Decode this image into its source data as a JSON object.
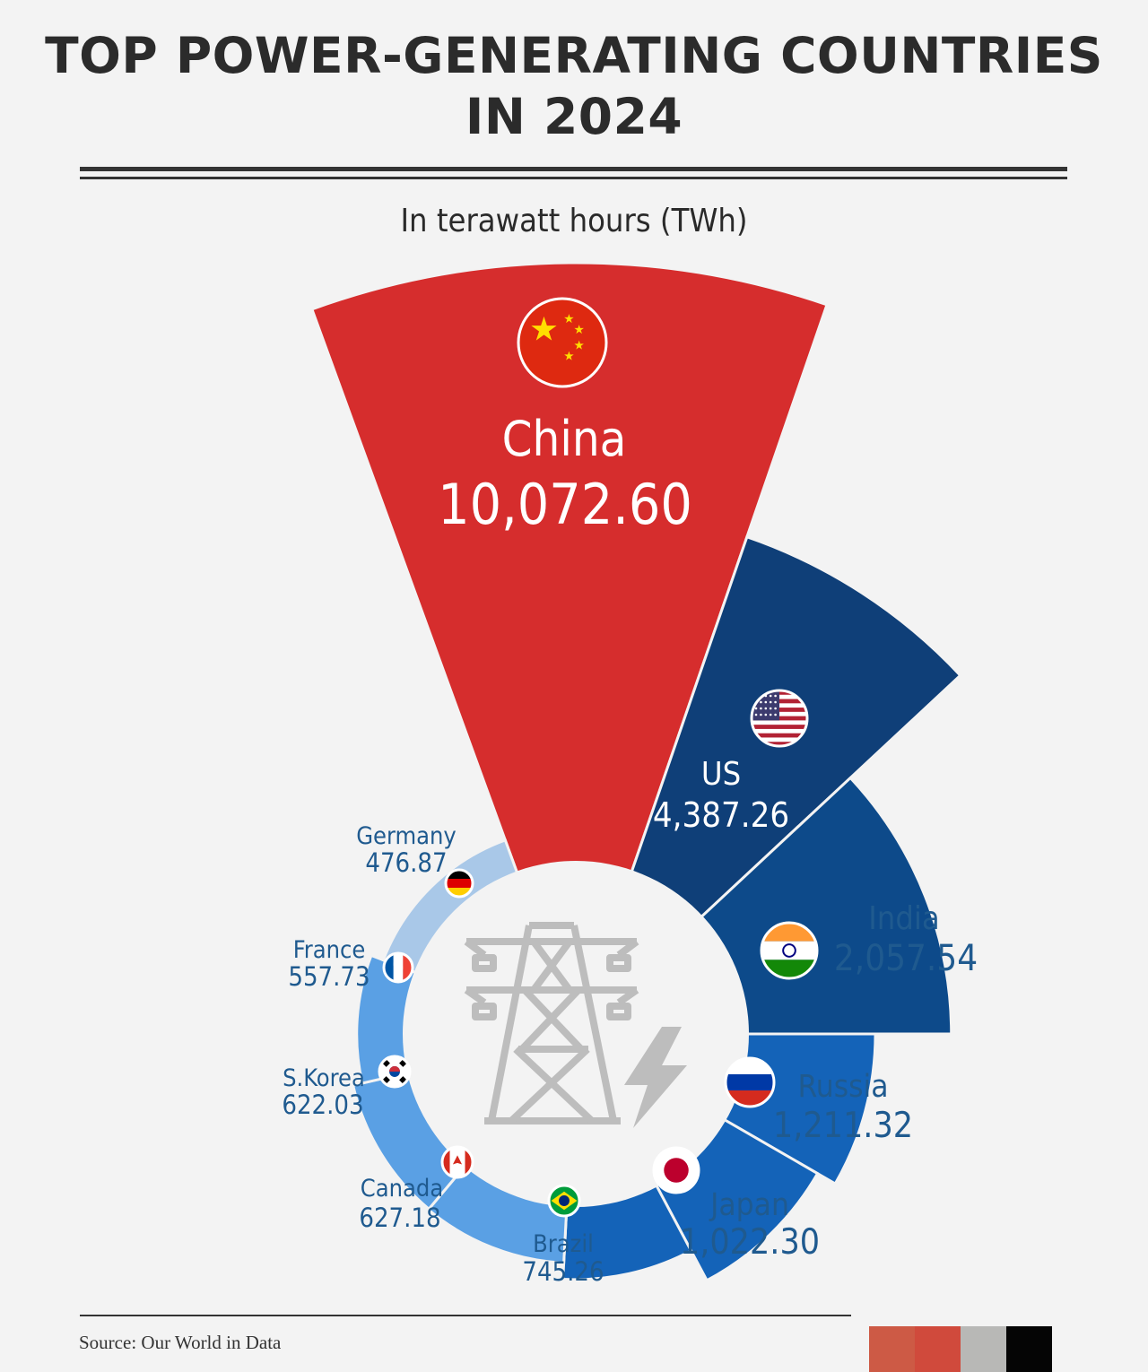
{
  "header": {
    "title_line1": "TOP POWER-GENERATING COUNTRIES",
    "title_line2": "IN 2024",
    "subtitle": "In terawatt hours (TWh)"
  },
  "footer": {
    "source": "Source: Our World in Data",
    "palette": [
      "#cd5a45",
      "#d04a3c",
      "#b8b8b6",
      "#050505"
    ]
  },
  "colors": {
    "china": "#d62d2d",
    "dark_blue": "#0f3f78",
    "mid_blue": "#0d4a8a",
    "blue": "#1463b8",
    "light_blue": "#5aa0e4",
    "pale_blue": "#a9c8e8",
    "label_blue": "#1f5a8f"
  },
  "chart_data": {
    "type": "radial-bar",
    "unit": "TWh",
    "title": "TOP POWER-GENERATING COUNTRIES IN 2024",
    "subtitle": "In terawatt hours (TWh)",
    "categories": [
      "China",
      "US",
      "India",
      "Russia",
      "Japan",
      "Brazil",
      "Canada",
      "S.Korea",
      "France",
      "Germany"
    ],
    "values": [
      10072.6,
      4387.26,
      2057.54,
      1211.32,
      1022.3,
      745.26,
      627.18,
      622.03,
      557.73,
      476.87
    ],
    "labels": [
      "10,072.60",
      "4,387.26",
      "2,057.54",
      "1,211.32",
      "1,022.30",
      "745.26",
      "627.18",
      "622.03",
      "557.73",
      "476.87"
    ],
    "display_names": [
      "China",
      "US",
      "India",
      "Russia",
      "Japan",
      "Brazil",
      "Canada",
      "S.Korea",
      "France",
      "Germany"
    ],
    "flags": [
      "china-flag-icon",
      "us-flag-icon",
      "india-flag-icon",
      "russia-flag-icon",
      "japan-flag-icon",
      "brazil-flag-icon",
      "canada-flag-icon",
      "south-korea-flag-icon",
      "france-flag-icon",
      "germany-flag-icon"
    ],
    "center_icon": "power-tower-lightning-icon"
  }
}
